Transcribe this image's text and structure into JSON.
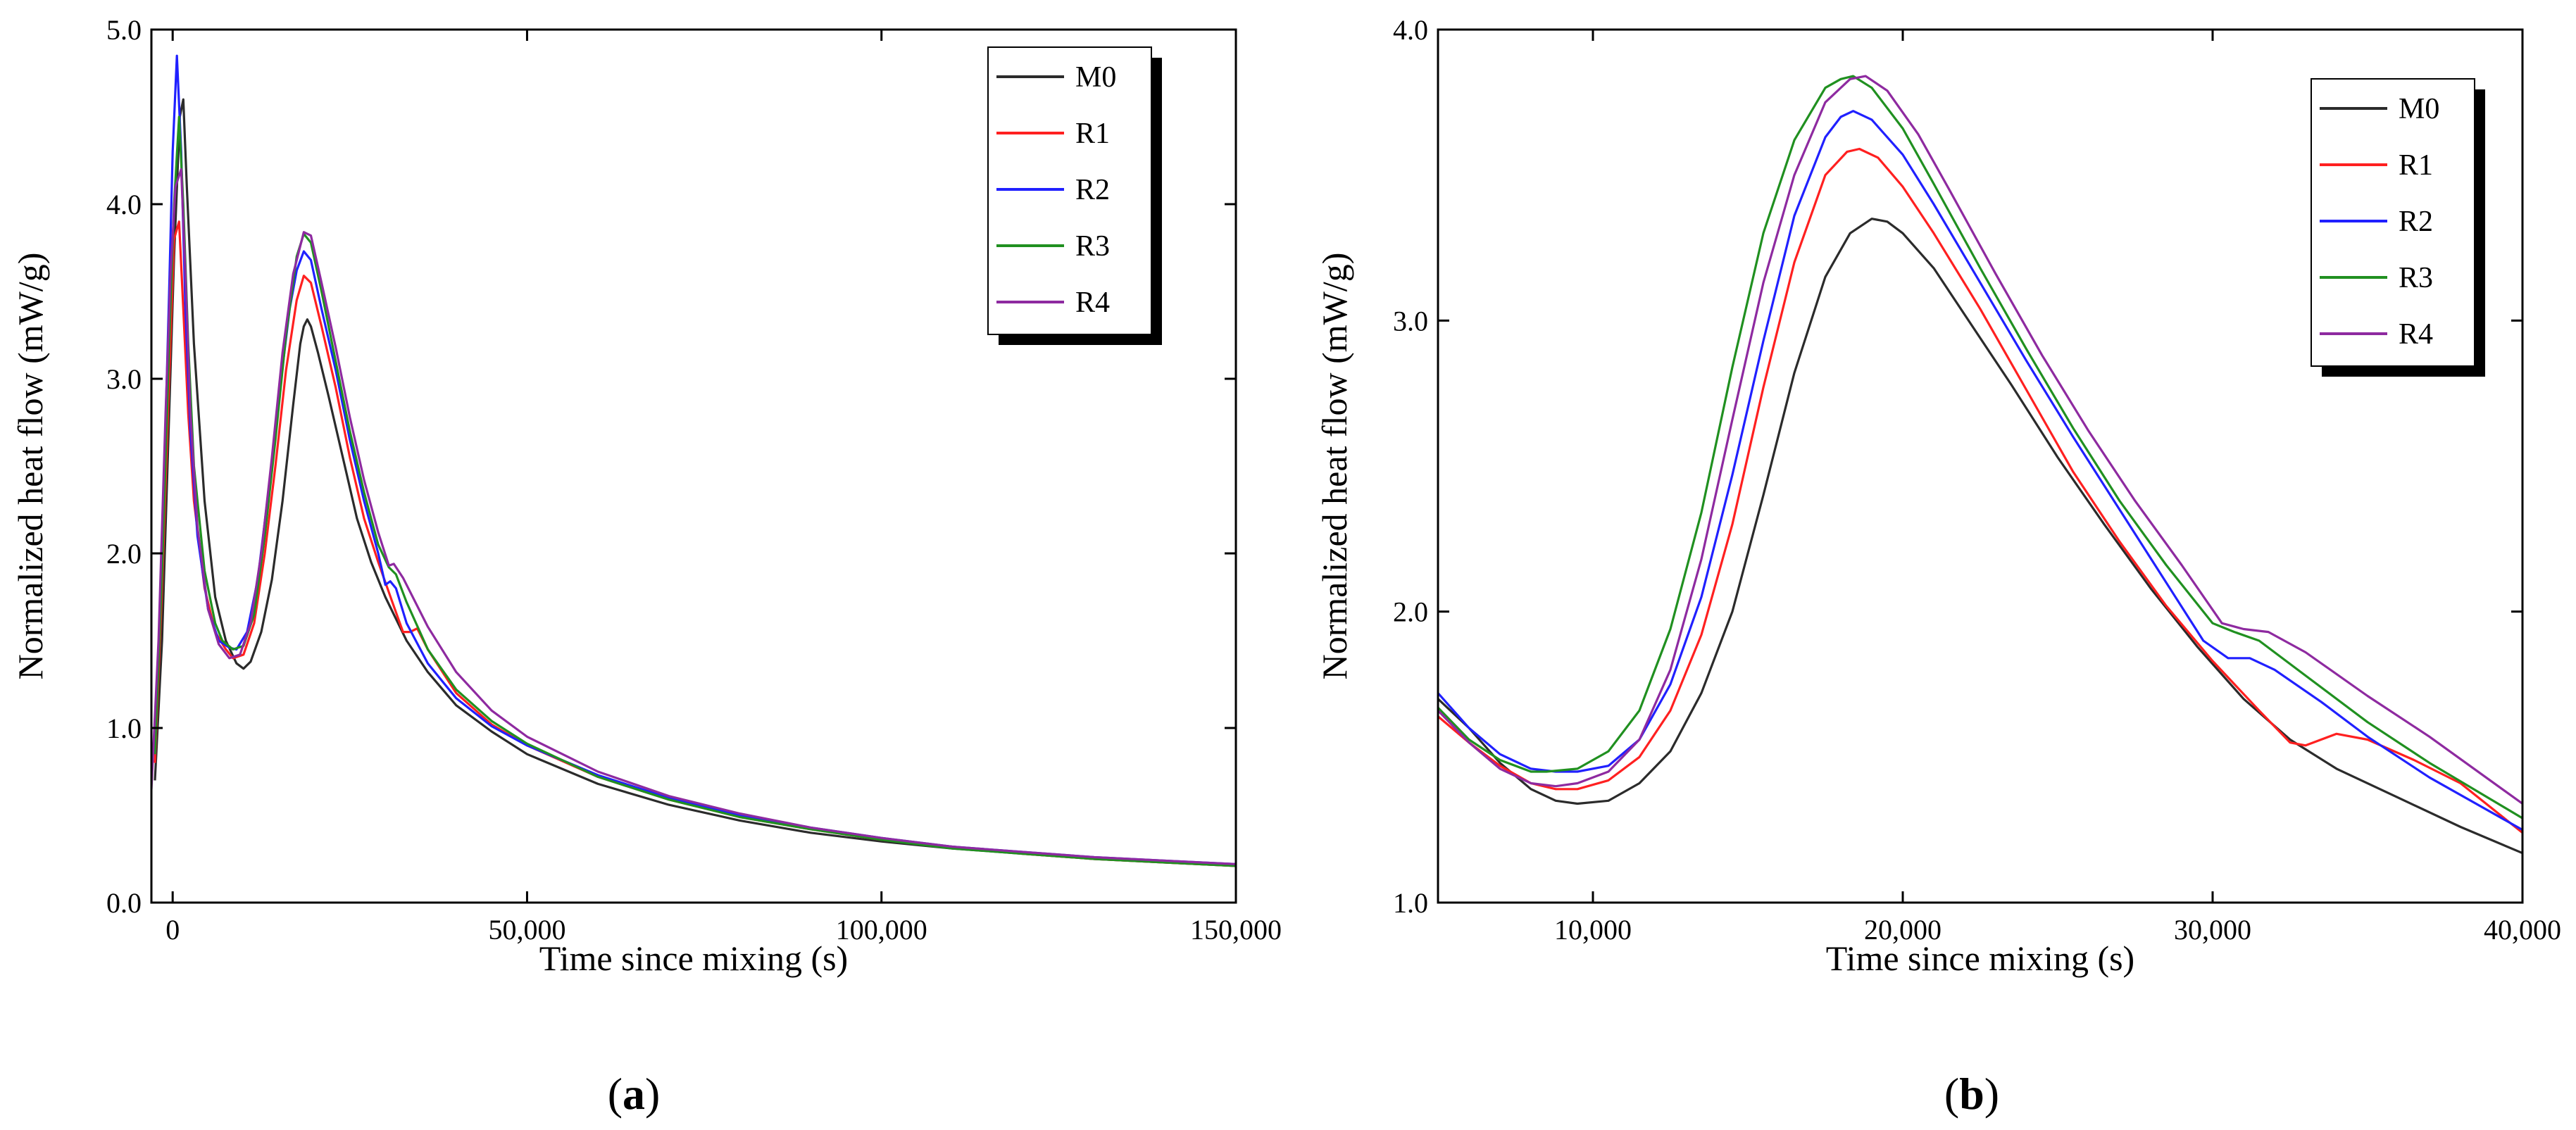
{
  "chart_data": [
    {
      "panel_label": "a",
      "type": "line",
      "title": "",
      "xlabel": "Time since mixing (s)",
      "ylabel": "Normalized heat flow (mW/g)",
      "xlim": [
        -3000,
        150000
      ],
      "ylim": [
        0,
        5
      ],
      "xticks": [
        0,
        50000,
        100000,
        150000
      ],
      "xtick_labels": [
        "0",
        "50,000",
        "100,000",
        "150,000"
      ],
      "yticks": [
        0,
        1,
        2,
        3,
        4,
        5
      ],
      "ytick_labels": [
        "0.0",
        "1.0",
        "2.0",
        "3.0",
        "4.0",
        "5.0"
      ],
      "grid": false,
      "legend_position": "top-right",
      "series": [
        {
          "name": "M0",
          "color": "#2b2b2b",
          "x": [
            -2500,
            -1500,
            -500,
            200,
            1000,
            1500,
            2000,
            3000,
            4500,
            6000,
            7500,
            9000,
            10000,
            11000,
            12500,
            14000,
            15500,
            17000,
            18000,
            18500,
            19000,
            19500,
            20500,
            22000,
            24000,
            26000,
            28000,
            30000,
            33000,
            36000,
            40000,
            45000,
            50000,
            60000,
            70000,
            80000,
            90000,
            100000,
            110000,
            120000,
            130000,
            140000,
            150000
          ],
          "y": [
            0.7,
            1.5,
            2.8,
            3.7,
            4.5,
            4.6,
            4.1,
            3.2,
            2.3,
            1.75,
            1.5,
            1.37,
            1.34,
            1.38,
            1.55,
            1.85,
            2.3,
            2.85,
            3.2,
            3.3,
            3.34,
            3.3,
            3.15,
            2.9,
            2.55,
            2.2,
            1.95,
            1.75,
            1.5,
            1.32,
            1.13,
            0.98,
            0.85,
            0.68,
            0.56,
            0.47,
            0.4,
            0.35,
            0.31,
            0.28,
            0.25,
            0.23,
            0.21
          ]
        },
        {
          "name": "R1",
          "color": "#ff2020",
          "x": [
            -2500,
            -1500,
            -500,
            200,
            900,
            1500,
            2200,
            3000,
            4500,
            6000,
            7500,
            8500,
            10000,
            11500,
            13000,
            14500,
            16000,
            17500,
            18500,
            19500,
            21000,
            23000,
            25000,
            27000,
            29000,
            31000,
            32500,
            33500,
            34500,
            36000,
            40000,
            45000,
            50000,
            60000,
            70000,
            80000,
            90000,
            100000,
            110000,
            120000,
            130000,
            140000,
            150000
          ],
          "y": [
            0.8,
            1.8,
            3.0,
            3.8,
            3.9,
            3.4,
            2.8,
            2.3,
            1.8,
            1.55,
            1.45,
            1.4,
            1.42,
            1.6,
            2.0,
            2.5,
            3.05,
            3.45,
            3.59,
            3.55,
            3.3,
            2.95,
            2.55,
            2.2,
            1.95,
            1.72,
            1.55,
            1.55,
            1.57,
            1.45,
            1.2,
            1.02,
            0.9,
            0.72,
            0.59,
            0.49,
            0.42,
            0.36,
            0.32,
            0.28,
            0.25,
            0.23,
            0.21
          ]
        },
        {
          "name": "R2",
          "color": "#2020ff",
          "x": [
            -2500,
            -1500,
            -500,
            0,
            600,
            1200,
            1800,
            2500,
            3500,
            5000,
            6500,
            8000,
            9000,
            10500,
            12000,
            13500,
            15000,
            16500,
            17500,
            18500,
            19500,
            21000,
            23000,
            25000,
            27000,
            29000,
            30000,
            30700,
            31500,
            33000,
            36000,
            40000,
            45000,
            50000,
            60000,
            70000,
            80000,
            90000,
            100000,
            110000,
            120000,
            130000,
            140000,
            150000
          ],
          "y": [
            0.85,
            2.0,
            3.5,
            4.3,
            4.85,
            4.3,
            3.4,
            2.7,
            2.1,
            1.68,
            1.5,
            1.46,
            1.45,
            1.55,
            1.85,
            2.35,
            2.9,
            3.4,
            3.62,
            3.73,
            3.68,
            3.4,
            3.05,
            2.65,
            2.3,
            2.0,
            1.82,
            1.84,
            1.8,
            1.6,
            1.37,
            1.17,
            1.01,
            0.9,
            0.73,
            0.6,
            0.5,
            0.43,
            0.37,
            0.32,
            0.29,
            0.26,
            0.24,
            0.22
          ]
        },
        {
          "name": "R3",
          "color": "#209020",
          "x": [
            -2500,
            -1500,
            -500,
            200,
            900,
            1500,
            2200,
            3000,
            4500,
            6000,
            7000,
            8500,
            10000,
            11500,
            13000,
            14500,
            16000,
            17500,
            18500,
            19500,
            21000,
            23000,
            25000,
            27000,
            29000,
            30500,
            31500,
            33000,
            36000,
            40000,
            45000,
            50000,
            60000,
            70000,
            80000,
            90000,
            100000,
            110000,
            120000,
            130000,
            140000,
            150000
          ],
          "y": [
            0.85,
            1.9,
            3.2,
            4.0,
            4.5,
            4.0,
            3.2,
            2.5,
            1.9,
            1.6,
            1.5,
            1.45,
            1.47,
            1.65,
            2.1,
            2.65,
            3.25,
            3.7,
            3.83,
            3.78,
            3.5,
            3.1,
            2.7,
            2.35,
            2.05,
            1.92,
            1.88,
            1.72,
            1.45,
            1.22,
            1.04,
            0.91,
            0.72,
            0.59,
            0.49,
            0.42,
            0.36,
            0.31,
            0.28,
            0.25,
            0.23,
            0.21
          ]
        },
        {
          "name": "R4",
          "color": "#8e2aa0",
          "x": [
            -3000,
            -2000,
            -1000,
            -300,
            400,
            1200,
            1800,
            2500,
            3500,
            5000,
            6500,
            8000,
            9500,
            11000,
            12500,
            14000,
            15500,
            17000,
            18500,
            19500,
            21000,
            23000,
            25000,
            27000,
            29000,
            30500,
            31200,
            32500,
            36000,
            40000,
            45000,
            50000,
            60000,
            70000,
            80000,
            90000,
            100000,
            110000,
            120000,
            130000,
            140000,
            150000
          ],
          "y": [
            0.65,
            1.5,
            2.8,
            3.6,
            4.1,
            4.2,
            3.6,
            2.8,
            2.15,
            1.68,
            1.48,
            1.4,
            1.42,
            1.6,
            2.0,
            2.55,
            3.15,
            3.6,
            3.84,
            3.82,
            3.55,
            3.18,
            2.78,
            2.42,
            2.12,
            1.93,
            1.94,
            1.86,
            1.58,
            1.32,
            1.1,
            0.95,
            0.75,
            0.61,
            0.51,
            0.43,
            0.37,
            0.32,
            0.29,
            0.26,
            0.24,
            0.22
          ]
        }
      ]
    },
    {
      "panel_label": "b",
      "type": "line",
      "title": "",
      "xlabel": "Time since mixing (s)",
      "ylabel": "Normalized heat flow (mW/g)",
      "xlim": [
        5000,
        40000
      ],
      "ylim": [
        1,
        4
      ],
      "xticks": [
        10000,
        20000,
        30000,
        40000
      ],
      "xtick_labels": [
        "10,000",
        "20,000",
        "30,000",
        "40,000"
      ],
      "yticks": [
        1,
        2,
        3,
        4
      ],
      "ytick_labels": [
        "1.0",
        "2.0",
        "3.0",
        "4.0"
      ],
      "grid": false,
      "legend_position": "top-right",
      "series": [
        {
          "name": "M0",
          "color": "#2b2b2b",
          "x": [
            5000,
            6000,
            7000,
            8000,
            8800,
            9500,
            10500,
            11500,
            12500,
            13500,
            14500,
            15500,
            16500,
            17500,
            18300,
            19000,
            19500,
            20000,
            21000,
            22000,
            23500,
            25000,
            26500,
            28000,
            29500,
            31000,
            32500,
            34000,
            36000,
            38000,
            40000
          ],
          "y": [
            1.7,
            1.6,
            1.48,
            1.39,
            1.35,
            1.34,
            1.35,
            1.41,
            1.52,
            1.72,
            2.0,
            2.4,
            2.82,
            3.15,
            3.3,
            3.35,
            3.34,
            3.3,
            3.18,
            3.02,
            2.78,
            2.53,
            2.3,
            2.08,
            1.88,
            1.7,
            1.56,
            1.46,
            1.36,
            1.26,
            1.17
          ]
        },
        {
          "name": "R1",
          "color": "#ff2020",
          "x": [
            5000,
            6000,
            7000,
            8000,
            8800,
            9500,
            10500,
            11500,
            12500,
            13500,
            14500,
            15500,
            16500,
            17500,
            18200,
            18600,
            19200,
            20000,
            21000,
            22500,
            24000,
            25500,
            27000,
            28500,
            30000,
            31500,
            32500,
            33000,
            33500,
            34000,
            35000,
            36500,
            38000,
            40000
          ],
          "y": [
            1.64,
            1.55,
            1.47,
            1.41,
            1.39,
            1.39,
            1.42,
            1.5,
            1.66,
            1.92,
            2.3,
            2.77,
            3.2,
            3.5,
            3.58,
            3.59,
            3.56,
            3.46,
            3.3,
            3.04,
            2.76,
            2.48,
            2.24,
            2.02,
            1.83,
            1.66,
            1.55,
            1.54,
            1.56,
            1.58,
            1.56,
            1.49,
            1.41,
            1.24
          ]
        },
        {
          "name": "R2",
          "color": "#2020ff",
          "x": [
            5000,
            6000,
            7000,
            8000,
            8800,
            9500,
            10500,
            11500,
            12500,
            13500,
            14500,
            15500,
            16500,
            17500,
            18000,
            18400,
            19000,
            20000,
            21000,
            22500,
            24000,
            25500,
            27000,
            28500,
            29700,
            30500,
            31200,
            32000,
            33500,
            35000,
            37000,
            40000
          ],
          "y": [
            1.72,
            1.6,
            1.51,
            1.46,
            1.45,
            1.45,
            1.47,
            1.56,
            1.75,
            2.05,
            2.47,
            2.93,
            3.36,
            3.63,
            3.7,
            3.72,
            3.69,
            3.57,
            3.4,
            3.13,
            2.86,
            2.6,
            2.35,
            2.1,
            1.9,
            1.84,
            1.84,
            1.8,
            1.69,
            1.57,
            1.43,
            1.25
          ]
        },
        {
          "name": "R3",
          "color": "#209020",
          "x": [
            5000,
            6000,
            7000,
            8000,
            8500,
            9500,
            10500,
            11500,
            12500,
            13500,
            14500,
            15500,
            16500,
            17500,
            18000,
            18400,
            19000,
            20000,
            21000,
            22500,
            24000,
            25500,
            27000,
            28500,
            30000,
            30700,
            31500,
            33000,
            35000,
            37000,
            40000
          ],
          "y": [
            1.67,
            1.56,
            1.49,
            1.45,
            1.45,
            1.46,
            1.52,
            1.66,
            1.94,
            2.34,
            2.84,
            3.3,
            3.62,
            3.8,
            3.83,
            3.84,
            3.8,
            3.66,
            3.47,
            3.18,
            2.9,
            2.63,
            2.38,
            2.16,
            1.96,
            1.93,
            1.9,
            1.78,
            1.62,
            1.48,
            1.29
          ]
        },
        {
          "name": "R4",
          "color": "#8e2aa0",
          "x": [
            5000,
            6000,
            7000,
            8000,
            8800,
            9500,
            10500,
            11500,
            12500,
            13500,
            14500,
            15500,
            16500,
            17500,
            18300,
            18800,
            19500,
            20500,
            21500,
            23000,
            24500,
            26000,
            27500,
            29000,
            30300,
            31000,
            31800,
            33000,
            35000,
            37000,
            40000
          ],
          "y": [
            1.66,
            1.55,
            1.46,
            1.41,
            1.4,
            1.41,
            1.45,
            1.56,
            1.8,
            2.18,
            2.66,
            3.13,
            3.5,
            3.75,
            3.83,
            3.84,
            3.79,
            3.64,
            3.45,
            3.16,
            2.88,
            2.62,
            2.38,
            2.16,
            1.96,
            1.94,
            1.93,
            1.86,
            1.71,
            1.57,
            1.34
          ]
        }
      ]
    }
  ]
}
